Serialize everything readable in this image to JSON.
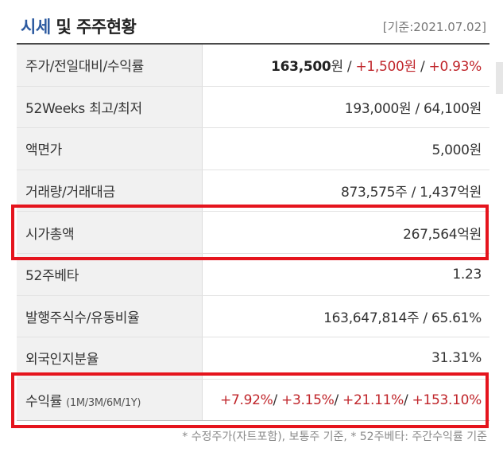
{
  "header": {
    "title_accent": "시세",
    "title_rest": "및 주주현황",
    "basis": "[기준:2021.07.02]"
  },
  "rows": {
    "price": {
      "label": "주가/전일대비/수익률",
      "price": "163,500",
      "unit": "원",
      "sep": " / ",
      "change": "+1,500원",
      "rate": "+0.93%"
    },
    "week52": {
      "label": "52Weeks 최고/최저",
      "value": "193,000원 / 64,100원"
    },
    "par": {
      "label": "액면가",
      "value": "5,000원"
    },
    "volume": {
      "label": "거래량/거래대금",
      "value": "873,575주 / 1,437억원"
    },
    "mcap": {
      "label": "시가총액",
      "value": "267,564억원"
    },
    "beta": {
      "label": "52주베타",
      "value": "1.23"
    },
    "shares": {
      "label": "발행주식수/유동비율",
      "value": "163,647,814주 / 65.61%"
    },
    "foreign": {
      "label": "외국인지분율",
      "value": "31.31%"
    },
    "returns": {
      "label": "수익률",
      "label_small": "(1M/3M/6M/1Y)",
      "r1": "+7.92%",
      "r2": "+3.15%",
      "r3": "+21.11%",
      "r4": "+153.10%",
      "sep": "/ "
    }
  },
  "footnote": "* 수정주가(자트포함), 보통주 기준, * 52주베타: 주간수익률 기준",
  "colors": {
    "highlight": "#e5141d",
    "accent": "#2c5aa0",
    "positive": "#c0262b"
  }
}
